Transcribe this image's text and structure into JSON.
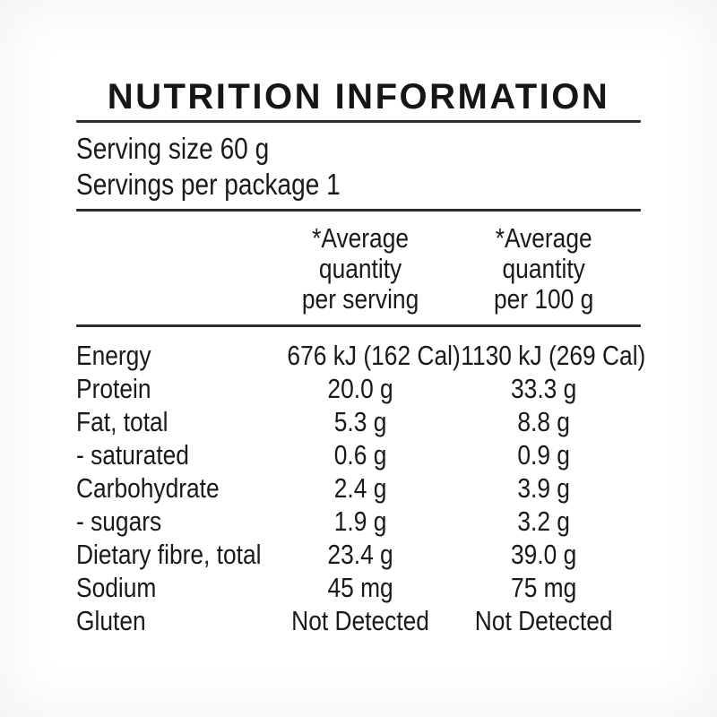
{
  "label": {
    "title": "NUTRITION INFORMATION",
    "serving_size": "Serving size 60 g",
    "servings_per_package": "Servings per package 1",
    "columns": {
      "per_serving": {
        "line1": "*Average",
        "line2": "quantity",
        "line3": "per serving"
      },
      "per_100g": {
        "line1": "*Average",
        "line2": "quantity",
        "line3": "per 100 g"
      }
    },
    "rows": [
      {
        "nutrient": "Energy",
        "per_serving": "676 kJ (162 Cal)",
        "per_100g": "1130 kJ (269 Cal)"
      },
      {
        "nutrient": "Protein",
        "per_serving": "20.0 g",
        "per_100g": "33.3 g"
      },
      {
        "nutrient": "Fat, total",
        "per_serving": "5.3 g",
        "per_100g": "8.8 g"
      },
      {
        "nutrient": "- saturated",
        "per_serving": "0.6 g",
        "per_100g": "0.9 g"
      },
      {
        "nutrient": "Carbohydrate",
        "per_serving": "2.4 g",
        "per_100g": "3.9 g"
      },
      {
        "nutrient": "- sugars",
        "per_serving": "1.9 g",
        "per_100g": "3.2 g"
      },
      {
        "nutrient": "Dietary fibre, total",
        "per_serving": "23.4 g",
        "per_100g": "39.0 g"
      },
      {
        "nutrient": "Sodium",
        "per_serving": "45 mg",
        "per_100g": "75 mg"
      },
      {
        "nutrient": "Gluten",
        "per_serving": "Not Detected",
        "per_100g": "Not Detected"
      }
    ],
    "colors": {
      "text": "#1a1a1a",
      "rule": "#2d2d2d",
      "background": "#ffffff"
    }
  }
}
